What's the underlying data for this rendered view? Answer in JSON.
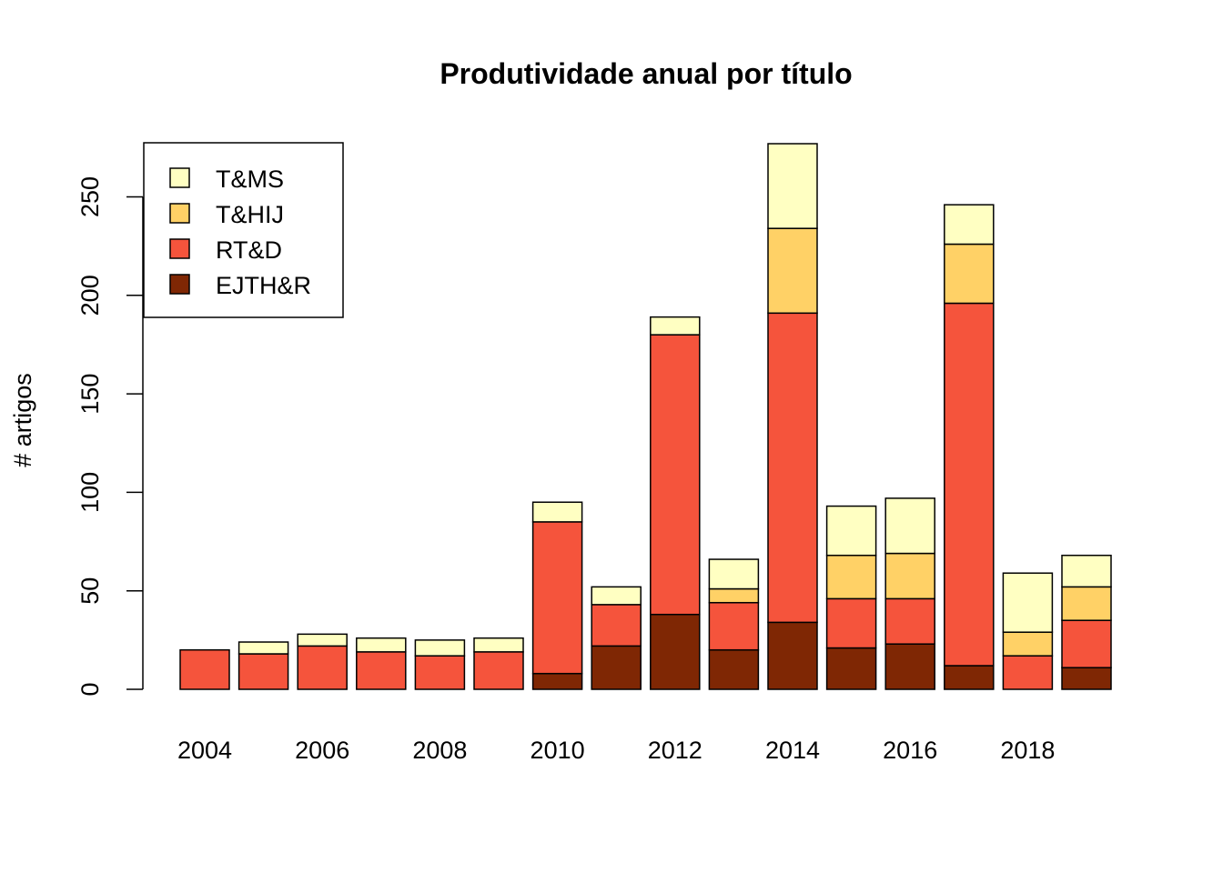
{
  "chart_data": {
    "type": "bar",
    "stacked": true,
    "title": "Produtividade anual por título",
    "xlabel": "",
    "ylabel": "# artigos",
    "ylim": [
      0,
      280
    ],
    "yticks": [
      0,
      50,
      100,
      150,
      200,
      250
    ],
    "categories": [
      "2004",
      "2005",
      "2006",
      "2007",
      "2008",
      "2009",
      "2010",
      "2011",
      "2012",
      "2013",
      "2014",
      "2015",
      "2016",
      "2017",
      "2018",
      "2019"
    ],
    "xtick_labels": [
      "2004",
      "2006",
      "2008",
      "2010",
      "2012",
      "2014",
      "2016",
      "2018"
    ],
    "grid": false,
    "legend_position": "top-left",
    "series": [
      {
        "name": "EJTH&R",
        "color": "#7F2704",
        "values": [
          0,
          0,
          0,
          0,
          0,
          0,
          8,
          22,
          38,
          20,
          34,
          21,
          23,
          12,
          0,
          11
        ]
      },
      {
        "name": "RT&D",
        "color": "#F5543C",
        "values": [
          20,
          18,
          22,
          19,
          17,
          19,
          77,
          21,
          142,
          24,
          157,
          25,
          23,
          184,
          17,
          24
        ]
      },
      {
        "name": "T&HIJ",
        "color": "#FFD166",
        "values": [
          0,
          0,
          0,
          0,
          0,
          0,
          0,
          0,
          0,
          7,
          43,
          22,
          23,
          30,
          12,
          17
        ]
      },
      {
        "name": "T&MS",
        "color": "#FFFFC2",
        "values": [
          0,
          6,
          6,
          7,
          8,
          7,
          10,
          9,
          9,
          15,
          43,
          25,
          28,
          20,
          30,
          16
        ]
      }
    ]
  }
}
